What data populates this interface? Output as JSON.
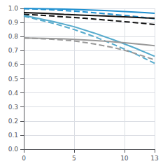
{
  "chart_data": {
    "type": "line",
    "xlim": [
      0,
      13
    ],
    "ylim": [
      0,
      1.0
    ],
    "xticks": [
      0,
      5,
      10,
      13
    ],
    "yticks": [
      {
        "value": 0,
        "label": "0.0"
      },
      0.1,
      0.2,
      0.3,
      0.4,
      0.5,
      0.6,
      0.7,
      0.8,
      0.9,
      {
        "value": 1.0,
        "label": "1.0"
      }
    ],
    "grid": true,
    "series": [
      {
        "color": "#2090d0",
        "line_style": "solid",
        "x": [
          0,
          2,
          4,
          6,
          8,
          10,
          12,
          13
        ],
        "values": [
          1.0,
          0.998,
          0.995,
          0.99,
          0.985,
          0.978,
          0.97,
          0.965
        ]
      },
      {
        "color": "#2090d0",
        "line_style": "dashed",
        "x": [
          0,
          2,
          4,
          6,
          8,
          10,
          12,
          13
        ],
        "values": [
          0.998,
          0.993,
          0.985,
          0.975,
          0.963,
          0.95,
          0.935,
          0.927
        ]
      },
      {
        "color": "#111111",
        "line_style": "solid",
        "x": [
          0,
          2,
          4,
          6,
          8,
          10,
          12,
          13
        ],
        "values": [
          0.97,
          0.965,
          0.958,
          0.952,
          0.946,
          0.94,
          0.933,
          0.93
        ]
      },
      {
        "color": "#111111",
        "line_style": "dashed",
        "x": [
          0,
          2,
          4,
          6,
          8,
          10,
          12,
          13
        ],
        "values": [
          0.958,
          0.95,
          0.94,
          0.93,
          0.918,
          0.906,
          0.893,
          0.886
        ]
      },
      {
        "color": "#55aacc",
        "line_style": "solid",
        "x": [
          0,
          1,
          3,
          5,
          7,
          9,
          11,
          13
        ],
        "values": [
          0.95,
          0.935,
          0.905,
          0.87,
          0.825,
          0.775,
          0.72,
          0.66
        ]
      },
      {
        "color": "#55aacc",
        "line_style": "dashed",
        "x": [
          0,
          1,
          3,
          5,
          7,
          9,
          11,
          13
        ],
        "values": [
          0.945,
          0.928,
          0.893,
          0.85,
          0.8,
          0.742,
          0.68,
          0.61
        ]
      },
      {
        "color": "#999999",
        "line_style": "solid",
        "x": [
          0,
          2,
          4,
          6,
          8,
          10,
          12,
          13
        ],
        "values": [
          0.79,
          0.787,
          0.783,
          0.776,
          0.768,
          0.756,
          0.742,
          0.735
        ]
      },
      {
        "color": "#999999",
        "line_style": "dashed",
        "x": [
          0,
          2,
          4,
          5,
          7,
          9,
          10,
          11,
          13
        ],
        "values": [
          0.79,
          0.784,
          0.775,
          0.769,
          0.748,
          0.72,
          0.703,
          0.682,
          0.635
        ]
      }
    ]
  }
}
